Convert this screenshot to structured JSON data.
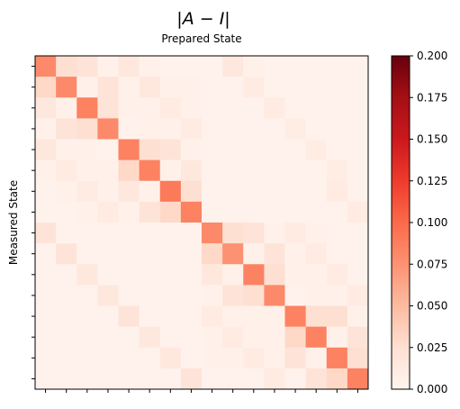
{
  "chart_data": {
    "type": "heatmap",
    "title": "|A − I|",
    "subtitle": "Prepared State",
    "xlabel": "Prepared State",
    "ylabel": "Measured State",
    "rows": 16,
    "cols": 16,
    "colormap": "Reds",
    "colorbar": {
      "min": 0.0,
      "max": 0.2,
      "ticks": [
        "0.000",
        "0.025",
        "0.050",
        "0.075",
        "0.100",
        "0.125",
        "0.150",
        "0.175",
        "0.200"
      ]
    },
    "values": [
      [
        0.08,
        0.025,
        0.02,
        0.005,
        0.015,
        0.005,
        0.003,
        0.003,
        0.003,
        0.015,
        0.005,
        0.003,
        0.003,
        0.003,
        0.003,
        0.003
      ],
      [
        0.03,
        0.08,
        0.005,
        0.02,
        0.005,
        0.015,
        0.005,
        0.005,
        0.003,
        0.003,
        0.012,
        0.003,
        0.003,
        0.003,
        0.003,
        0.003
      ],
      [
        0.015,
        0.005,
        0.085,
        0.02,
        0.005,
        0.005,
        0.012,
        0.005,
        0.003,
        0.003,
        0.003,
        0.012,
        0.003,
        0.003,
        0.003,
        0.003
      ],
      [
        0.005,
        0.02,
        0.025,
        0.08,
        0.003,
        0.005,
        0.005,
        0.012,
        0.003,
        0.003,
        0.003,
        0.003,
        0.01,
        0.003,
        0.003,
        0.003
      ],
      [
        0.015,
        0.005,
        0.005,
        0.003,
        0.085,
        0.025,
        0.02,
        0.005,
        0.003,
        0.003,
        0.003,
        0.003,
        0.003,
        0.01,
        0.003,
        0.003
      ],
      [
        0.005,
        0.012,
        0.005,
        0.005,
        0.03,
        0.085,
        0.005,
        0.015,
        0.003,
        0.003,
        0.003,
        0.003,
        0.003,
        0.003,
        0.01,
        0.003
      ],
      [
        0.003,
        0.005,
        0.012,
        0.005,
        0.015,
        0.005,
        0.09,
        0.025,
        0.003,
        0.003,
        0.003,
        0.003,
        0.003,
        0.003,
        0.012,
        0.003
      ],
      [
        0.003,
        0.003,
        0.005,
        0.012,
        0.005,
        0.02,
        0.03,
        0.085,
        0.003,
        0.003,
        0.003,
        0.003,
        0.003,
        0.003,
        0.003,
        0.012
      ],
      [
        0.02,
        0.003,
        0.003,
        0.003,
        0.003,
        0.003,
        0.003,
        0.003,
        0.08,
        0.025,
        0.02,
        0.005,
        0.012,
        0.005,
        0.003,
        0.003
      ],
      [
        0.003,
        0.02,
        0.003,
        0.003,
        0.003,
        0.003,
        0.003,
        0.003,
        0.03,
        0.075,
        0.005,
        0.02,
        0.005,
        0.012,
        0.003,
        0.003
      ],
      [
        0.003,
        0.003,
        0.015,
        0.003,
        0.003,
        0.003,
        0.003,
        0.003,
        0.015,
        0.005,
        0.085,
        0.025,
        0.005,
        0.005,
        0.012,
        0.003
      ],
      [
        0.003,
        0.003,
        0.003,
        0.015,
        0.003,
        0.003,
        0.003,
        0.003,
        0.005,
        0.02,
        0.025,
        0.08,
        0.003,
        0.005,
        0.005,
        0.012
      ],
      [
        0.003,
        0.003,
        0.003,
        0.003,
        0.02,
        0.003,
        0.003,
        0.003,
        0.012,
        0.005,
        0.005,
        0.005,
        0.085,
        0.025,
        0.025,
        0.005
      ],
      [
        0.003,
        0.003,
        0.003,
        0.003,
        0.003,
        0.015,
        0.003,
        0.003,
        0.005,
        0.012,
        0.005,
        0.005,
        0.03,
        0.085,
        0.005,
        0.02
      ],
      [
        0.003,
        0.003,
        0.003,
        0.003,
        0.003,
        0.003,
        0.015,
        0.003,
        0.005,
        0.005,
        0.012,
        0.005,
        0.02,
        0.005,
        0.085,
        0.025
      ],
      [
        0.003,
        0.003,
        0.003,
        0.003,
        0.003,
        0.003,
        0.003,
        0.02,
        0.003,
        0.003,
        0.003,
        0.012,
        0.003,
        0.02,
        0.03,
        0.085
      ]
    ]
  }
}
